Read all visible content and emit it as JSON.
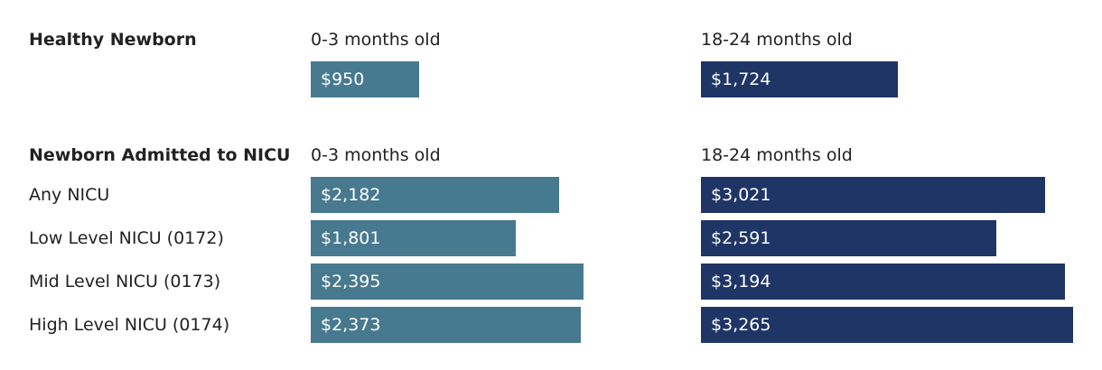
{
  "chart_data": {
    "type": "bar",
    "orientation": "horizontal",
    "colors": {
      "0-3 months old": "#47798f",
      "18-24 months old": "#1f3566"
    },
    "groups": [
      {
        "title": "Healthy Newborn",
        "series_labels": [
          "0-3 months old",
          "18-24 months old"
        ],
        "rows": [
          {
            "label": "",
            "values": [
              950,
              1724
            ],
            "value_labels": [
              "$950",
              "$1,724"
            ]
          }
        ]
      },
      {
        "title": "Newborn Admitted to NICU",
        "series_labels": [
          "0-3 months old",
          "18-24 months old"
        ],
        "rows": [
          {
            "label": "Any NICU",
            "values": [
              2182,
              3021
            ],
            "value_labels": [
              "$2,182",
              "$3,021"
            ]
          },
          {
            "label": "Low Level NICU (0172)",
            "values": [
              1801,
              2591
            ],
            "value_labels": [
              "$1,801",
              "$2,591"
            ]
          },
          {
            "label": "Mid Level NICU (0173)",
            "values": [
              2395,
              3194
            ],
            "value_labels": [
              "$2,395",
              "$3,194"
            ]
          },
          {
            "label": "High Level NICU (0174)",
            "values": [
              2373,
              3265
            ],
            "value_labels": [
              "$2,373",
              "$3,265"
            ]
          }
        ]
      }
    ]
  }
}
